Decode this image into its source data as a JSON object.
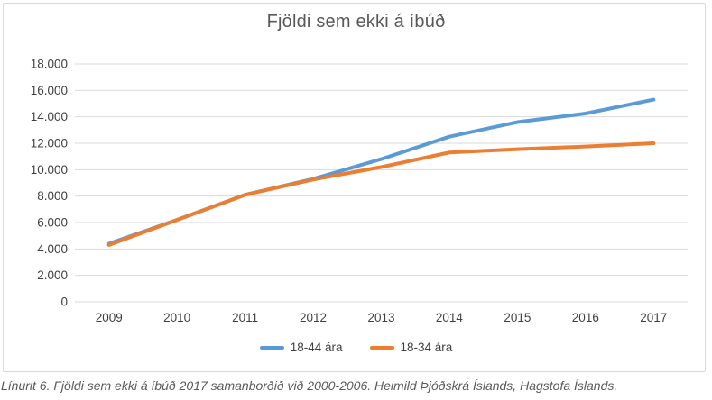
{
  "figure": {
    "title": "Fjöldi sem ekki á íbúð",
    "caption": "Línurit 6. Fjöldi sem ekki á íbúð 2017 samanborðið við 2000-2006. Heimild Þjóðskrá Íslands, Hagstofa Íslands."
  },
  "chart_data": {
    "type": "line",
    "title": "Fjöldi sem ekki á íbúð",
    "categories": [
      "2009",
      "2010",
      "2011",
      "2012",
      "2013",
      "2014",
      "2015",
      "2016",
      "2017"
    ],
    "series": [
      {
        "name": "18-44 ára",
        "color": "#5B9BD5",
        "values": [
          4400,
          6200,
          8100,
          9300,
          10800,
          12500,
          13600,
          14250,
          15300
        ]
      },
      {
        "name": "18-34 ára",
        "color": "#ED7D31",
        "values": [
          4300,
          6200,
          8100,
          9250,
          10200,
          11300,
          11550,
          11750,
          12000
        ]
      }
    ],
    "ylim": [
      0,
      18000
    ],
    "y_tick_step": 2000,
    "y_tick_labels": [
      "0",
      "2.000",
      "4.000",
      "6.000",
      "8.000",
      "10.000",
      "12.000",
      "14.000",
      "16.000",
      "18.000"
    ],
    "grid": true,
    "legend_position": "bottom",
    "xlabel": "",
    "ylabel": ""
  },
  "colors": {
    "gridline": "#D9D9D9",
    "frame_border": "#D9D9D9",
    "axis_text": "#404040",
    "title_text": "#595959",
    "caption_text": "#595959"
  }
}
